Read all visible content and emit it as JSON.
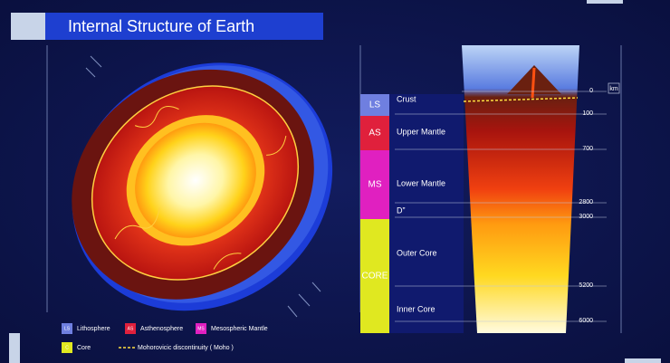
{
  "header": {
    "title": "Internal Structure of Earth"
  },
  "column": [
    {
      "abbr": "LS"
    },
    {
      "abbr": "AS"
    },
    {
      "abbr": "MS"
    },
    {
      "abbr": "CORE"
    }
  ],
  "labels": [
    "Crust",
    "Upper Mantle",
    "Lower Mantle",
    "D”",
    "Outer Core",
    "Inner Core"
  ],
  "depth_scale": {
    "unit": "km",
    "ticks": [
      "0",
      "100",
      "700",
      "2800",
      "3000",
      "5200",
      "6000"
    ]
  },
  "legend": [
    {
      "key": "LS",
      "label": "Lithosphere"
    },
    {
      "key": "AS",
      "label": "Asthenosphere"
    },
    {
      "key": "MS",
      "label": "Mesospheric Mantle"
    },
    {
      "key": "C",
      "label": "Core"
    },
    {
      "label": "Mohorovicic discontinuity ( Moho )"
    }
  ]
}
